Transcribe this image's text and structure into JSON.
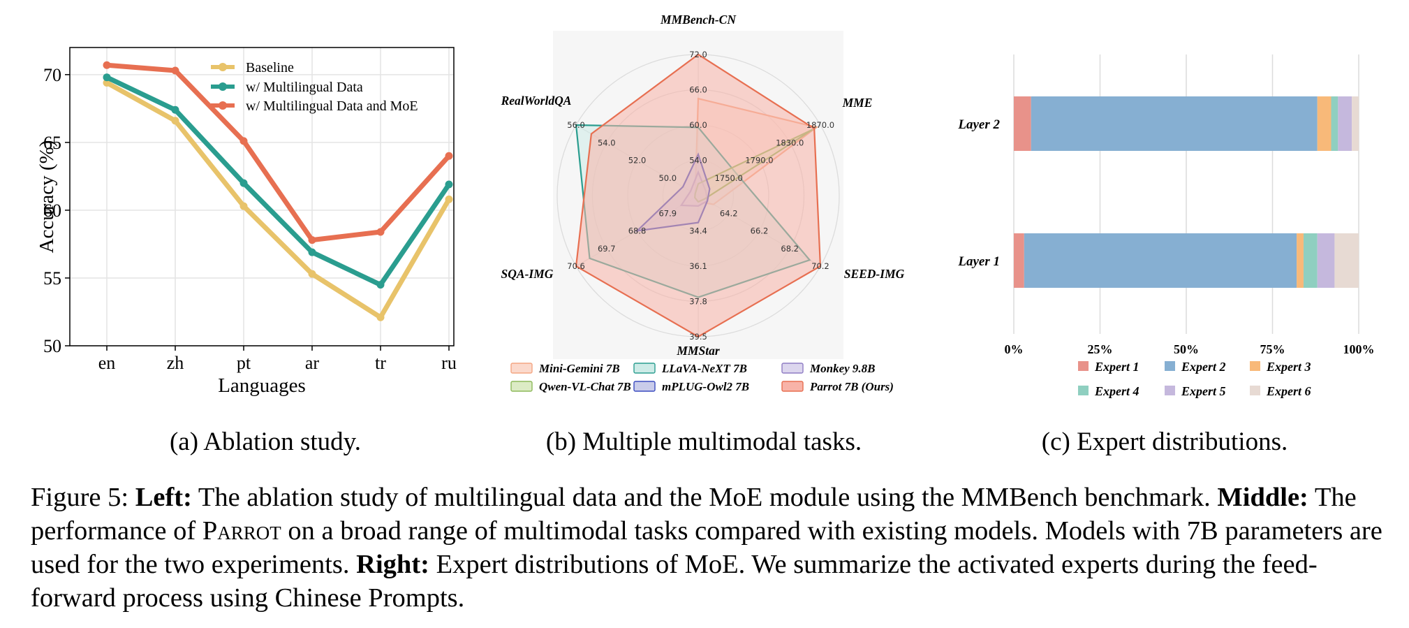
{
  "chart_data": [
    {
      "type": "line",
      "xlabel": "Languages",
      "ylabel": "Accuracy (%)",
      "categories": [
        "en",
        "zh",
        "pt",
        "ar",
        "tr",
        "ru"
      ],
      "ylim": [
        50,
        72
      ],
      "yticks": [
        "50",
        "55",
        "60",
        "65",
        "70"
      ],
      "grid": true,
      "legend": "top-right",
      "series": [
        {
          "name": "Baseline",
          "color": "#E8C36A",
          "values": [
            69.4,
            66.6,
            60.3,
            55.3,
            52.1,
            60.8
          ]
        },
        {
          "name": "w/ Multilingual Data",
          "color": "#2A9D8F",
          "values": [
            69.8,
            67.4,
            62.0,
            56.9,
            54.5,
            61.9
          ]
        },
        {
          "name": "w/ Multilingual Data and MoE",
          "color": "#E76F51",
          "values": [
            70.7,
            70.3,
            65.1,
            57.8,
            58.4,
            64.0
          ]
        }
      ],
      "subcaption": "(a) Ablation study."
    },
    {
      "type": "radar",
      "axes": [
        {
          "name": "MMBench-CN",
          "min": 48,
          "max": 72,
          "ticks": [
            "54.0",
            "60.0",
            "66.0",
            "72.0"
          ]
        },
        {
          "name": "MME",
          "min": 1710,
          "max": 1870,
          "ticks": [
            "1750.0",
            "1790.0",
            "1830.0",
            "1870.0"
          ]
        },
        {
          "name": "SEED-IMG",
          "min": 62.2,
          "max": 70.2,
          "ticks": [
            "64.2",
            "66.2",
            "68.2",
            "70.2"
          ]
        },
        {
          "name": "MMStar",
          "min": 32.7,
          "max": 39.5,
          "ticks": [
            "34.4",
            "36.1",
            "37.8",
            "39.5"
          ]
        },
        {
          "name": "SQA-IMG",
          "min": 67.0,
          "max": 70.6,
          "ticks": [
            "67.9",
            "68.8",
            "69.7",
            "70.6"
          ]
        },
        {
          "name": "RealWorldQA",
          "min": 48.0,
          "max": 56.0,
          "ticks": [
            "50.0",
            "52.0",
            "54.0",
            "56.0"
          ]
        }
      ],
      "series": [
        {
          "name": "Mini-Gemini 7B",
          "color": "#F4A582",
          "fill": "#FBD9CC",
          "values": [
            64.5,
            1865,
            63.2,
            33.0,
            67.1,
            48.2
          ]
        },
        {
          "name": "LLaVA-NeXT 7B",
          "color": "#2A9D8F",
          "fill": "#CDEBE7",
          "values": [
            59.6,
            1760,
            69.5,
            37.6,
            70.2,
            56.0
          ]
        },
        {
          "name": "Monkey 9.8B",
          "color": "#8E7CC3",
          "fill": "#DCD6EE",
          "values": [
            52.0,
            1720,
            62.8,
            33.2,
            67.5,
            48.5
          ]
        },
        {
          "name": "Qwen-VL-Chat 7B",
          "color": "#8DB95A",
          "fill": "#DCEBC5",
          "values": [
            50.0,
            1860,
            62.6,
            33.0,
            67.1,
            48.2
          ]
        },
        {
          "name": "mPLUG-Owl2 7B",
          "color": "#3B4CC0",
          "fill": "#C9CCEA",
          "values": [
            55.0,
            1725,
            62.8,
            34.0,
            68.8,
            49.0
          ]
        },
        {
          "name": "Parrot 7B (Ours)",
          "color": "#E76F51",
          "fill": "#F8B3A8",
          "values": [
            72.0,
            1862,
            70.2,
            39.5,
            70.6,
            55.0
          ]
        }
      ],
      "legend": "bottom",
      "subcaption": "(b) Multiple multimodal tasks."
    },
    {
      "type": "bar",
      "stacked": true,
      "orientation": "horizontal",
      "categories": [
        "Layer 2",
        "Layer 1"
      ],
      "xlim": [
        0,
        100
      ],
      "xticks": [
        "0%",
        "25%",
        "50%",
        "75%",
        "100%"
      ],
      "grid": true,
      "legend": "bottom",
      "series": [
        {
          "name": "Expert 1",
          "color": "#E8928A",
          "values": [
            5,
            3
          ]
        },
        {
          "name": "Expert 2",
          "color": "#86AFD2",
          "values": [
            83,
            79
          ]
        },
        {
          "name": "Expert 3",
          "color": "#F8B979",
          "values": [
            4,
            2
          ]
        },
        {
          "name": "Expert 4",
          "color": "#8FCFC0",
          "values": [
            2,
            4
          ]
        },
        {
          "name": "Expert 5",
          "color": "#C5B8DD",
          "values": [
            4,
            5
          ]
        },
        {
          "name": "Expert 6",
          "color": "#E7DAD3",
          "values": [
            2,
            7
          ]
        }
      ],
      "subcaption": "(c) Expert distributions."
    }
  ],
  "caption": {
    "figure_label": "Figure 5:",
    "left_label": "Left:",
    "left_text": "The ablation study of multilingual data and the MoE module using the MMBench benchmark.",
    "middle_label": "Middle:",
    "middle_text_1": "The performance of",
    "model_name": "Parrot",
    "middle_text_2": "on a broad range of multimodal tasks compared with existing models. Models with 7B parameters are used for the two experiments.",
    "right_label": "Right:",
    "right_text": "Expert distributions of MoE. We summarize the activated experts during the feed-forward process using Chinese Prompts."
  }
}
